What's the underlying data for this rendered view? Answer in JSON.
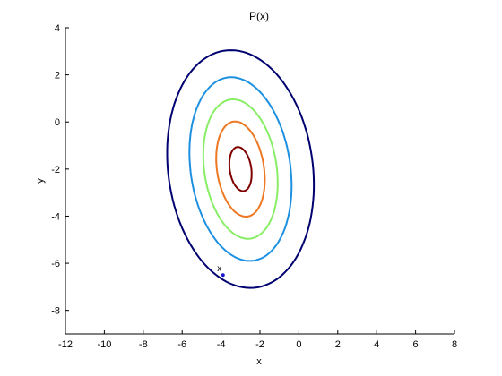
{
  "chart_data": {
    "type": "line",
    "title": "P(x)",
    "xlabel": "x",
    "ylabel": "y",
    "xlim": [
      -12,
      8
    ],
    "ylim": [
      -9,
      4
    ],
    "xticks": [
      -12,
      -10,
      -8,
      -6,
      -4,
      -2,
      0,
      2,
      4,
      6,
      8
    ],
    "yticks": [
      -8,
      -6,
      -4,
      -2,
      0,
      2,
      4
    ],
    "grid": false,
    "contours": {
      "center": [
        -3,
        -2
      ],
      "rotation_deg": 12,
      "levels": [
        {
          "color": "#800000",
          "semi_x": 0.55,
          "semi_y": 0.95
        },
        {
          "color": "#ee7722",
          "semi_x": 1.2,
          "semi_y": 2.05
        },
        {
          "color": "#88ee66",
          "semi_x": 1.85,
          "semi_y": 3.0
        },
        {
          "color": "#1e90e0",
          "semi_x": 2.55,
          "semi_y": 3.95
        },
        {
          "color": "#000070",
          "semi_x": 3.7,
          "semi_y": 5.1
        }
      ]
    },
    "point": {
      "label": "x",
      "x": -3.9,
      "y": -6.5,
      "color": "#1a1acc"
    }
  }
}
